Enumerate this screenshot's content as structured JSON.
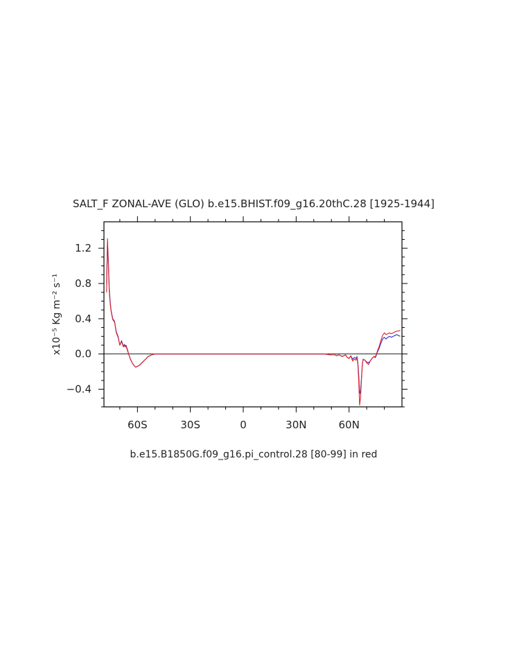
{
  "chart_data": {
    "type": "line",
    "title": "SALT_F ZONAL-AVE (GLO) b.e15.BHIST.f09_g16.20thC.28 [1925-1944]",
    "ylabel": "x10⁻⁵ Kg m⁻² s⁻¹",
    "xlabel": "",
    "caption": "b.e15.B1850G.f09_g16.pi_control.28 [80-99] in red",
    "xlim": [
      -79,
      90
    ],
    "ylim": [
      -0.6,
      1.5
    ],
    "x_ticks": [
      {
        "value": -60,
        "label": "60S"
      },
      {
        "value": -30,
        "label": "30S"
      },
      {
        "value": 0,
        "label": "0"
      },
      {
        "value": 30,
        "label": "30N"
      },
      {
        "value": 60,
        "label": "60N"
      }
    ],
    "y_ticks": [
      {
        "value": -0.4,
        "label": "−0.4"
      },
      {
        "value": 0.0,
        "label": "0.0"
      },
      {
        "value": 0.4,
        "label": "0.4"
      },
      {
        "value": 0.8,
        "label": "0.8"
      },
      {
        "value": 1.2,
        "label": "1.2"
      }
    ],
    "zero_line": true,
    "series": [
      {
        "color": "#2a2ad6",
        "x": [
          -77.5,
          -77,
          -76.5,
          -76,
          -75.5,
          -75,
          -74.5,
          -74,
          -73,
          -72,
          -71,
          -70,
          -69,
          -68.5,
          -68,
          -67.5,
          -67,
          -66.5,
          -66,
          -65.5,
          -65,
          -64.5,
          -64,
          -63,
          -62,
          -61,
          -60,
          -59,
          -58,
          -57,
          -56,
          -55,
          -54,
          -52,
          -50,
          -45,
          -30,
          0,
          30,
          40,
          44,
          46,
          48,
          50,
          52,
          53,
          54,
          55,
          56,
          57,
          58,
          59,
          60,
          61,
          62,
          63,
          64,
          64.5,
          65,
          65.5,
          66,
          66.5,
          67,
          67.5,
          68,
          69,
          70,
          71,
          72,
          73,
          74,
          75,
          76,
          77,
          78,
          79,
          80,
          81,
          82,
          83,
          84,
          85,
          86,
          87,
          88,
          89
        ],
        "y": [
          0.8,
          1.28,
          1.05,
          0.75,
          0.6,
          0.5,
          0.45,
          0.4,
          0.37,
          0.25,
          0.2,
          0.1,
          0.15,
          0.12,
          0.08,
          0.11,
          0.09,
          0.1,
          0.07,
          0.04,
          0.0,
          -0.03,
          -0.06,
          -0.1,
          -0.13,
          -0.15,
          -0.14,
          -0.13,
          -0.11,
          -0.09,
          -0.07,
          -0.05,
          -0.03,
          -0.01,
          0.0,
          0.0,
          0.0,
          0.0,
          0.0,
          0.0,
          0.0,
          0.0,
          -0.005,
          -0.01,
          -0.01,
          -0.02,
          -0.01,
          -0.015,
          -0.03,
          -0.02,
          -0.01,
          -0.04,
          -0.05,
          -0.02,
          -0.06,
          -0.04,
          -0.05,
          -0.03,
          -0.1,
          -0.25,
          -0.45,
          -0.42,
          -0.28,
          -0.12,
          -0.06,
          -0.07,
          -0.09,
          -0.1,
          -0.08,
          -0.05,
          -0.03,
          -0.04,
          0.02,
          0.06,
          0.12,
          0.17,
          0.19,
          0.17,
          0.19,
          0.2,
          0.19,
          0.2,
          0.21,
          0.22,
          0.21,
          0.2
        ]
      },
      {
        "color": "#e02020",
        "x": [
          -77.5,
          -77,
          -76.5,
          -76,
          -75.5,
          -75,
          -74.5,
          -74,
          -73,
          -72,
          -71,
          -70,
          -69,
          -68.5,
          -68,
          -67.5,
          -67,
          -66.5,
          -66,
          -65.5,
          -65,
          -64.5,
          -64,
          -63,
          -62,
          -61,
          -60,
          -59,
          -58,
          -57,
          -56,
          -55,
          -54,
          -52,
          -50,
          -45,
          -30,
          0,
          30,
          40,
          44,
          46,
          48,
          50,
          52,
          53,
          54,
          55,
          56,
          57,
          58,
          59,
          60,
          61,
          62,
          63,
          64,
          64.5,
          65,
          65.5,
          66,
          66.5,
          67,
          67.5,
          68,
          69,
          70,
          71,
          72,
          73,
          74,
          75,
          76,
          77,
          78,
          79,
          80,
          81,
          82,
          83,
          84,
          85,
          86,
          87,
          88,
          89
        ],
        "y": [
          0.7,
          1.31,
          1.0,
          0.72,
          0.58,
          0.49,
          0.44,
          0.39,
          0.36,
          0.24,
          0.19,
          0.1,
          0.14,
          0.11,
          0.08,
          0.1,
          0.08,
          0.09,
          0.06,
          0.03,
          0.0,
          -0.03,
          -0.06,
          -0.1,
          -0.13,
          -0.15,
          -0.14,
          -0.13,
          -0.11,
          -0.09,
          -0.07,
          -0.05,
          -0.03,
          -0.01,
          0.0,
          0.0,
          0.0,
          0.0,
          0.0,
          0.0,
          0.0,
          0.0,
          -0.005,
          -0.01,
          -0.01,
          -0.02,
          -0.01,
          -0.015,
          -0.03,
          -0.02,
          -0.01,
          -0.04,
          -0.05,
          -0.02,
          -0.08,
          -0.06,
          -0.07,
          -0.04,
          -0.12,
          -0.32,
          -0.58,
          -0.5,
          -0.3,
          -0.12,
          -0.06,
          -0.07,
          -0.1,
          -0.12,
          -0.08,
          -0.05,
          -0.03,
          -0.03,
          0.03,
          0.08,
          0.15,
          0.21,
          0.24,
          0.22,
          0.23,
          0.24,
          0.23,
          0.24,
          0.25,
          0.26,
          0.26,
          0.27
        ]
      }
    ]
  }
}
